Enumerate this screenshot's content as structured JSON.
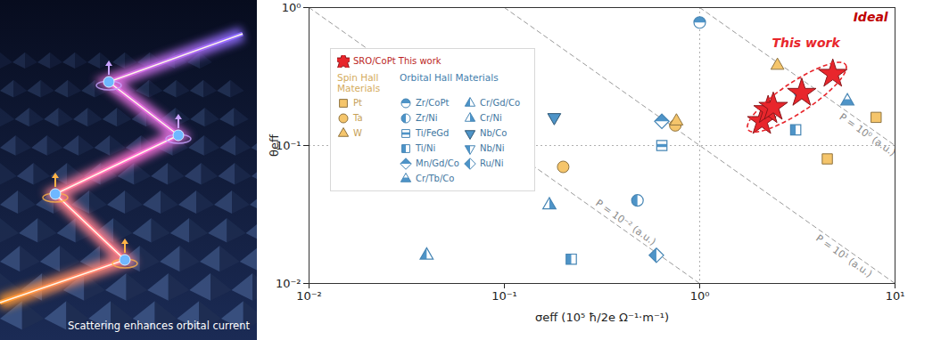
{
  "illustration": {
    "caption": "Scattering enhances orbital current"
  },
  "chart_data": {
    "type": "scatter",
    "x_label": "σeff (10⁵ ħ/2e Ω⁻¹·m⁻¹)",
    "y_label": "θeff",
    "log": true,
    "grid": false,
    "legend": "upper left",
    "xlim": [
      0.01,
      10
    ],
    "xticks": [
      {
        "value": 0.01,
        "label": "10⁻²"
      },
      {
        "value": 0.1,
        "label": "10⁻¹"
      },
      {
        "value": 1,
        "label": "10⁰"
      },
      {
        "value": 10,
        "label": "10¹"
      }
    ],
    "ylim": [
      0.01,
      1
    ],
    "yticks": [
      {
        "value": 0.01,
        "label": "10⁻²"
      },
      {
        "value": 0.1,
        "label": "10⁻¹"
      },
      {
        "value": 1,
        "label": "10⁰"
      }
    ],
    "dotted_lines": {
      "x": [
        1
      ],
      "y": [
        0.1
      ]
    },
    "reference_lines": [
      {
        "label": "P = 10⁻² (a.u.)",
        "x": [
          0.01,
          1
        ],
        "y": [
          1,
          0.01
        ]
      },
      {
        "label": "P = 10¹ (a.u.)",
        "x": [
          0.1,
          10
        ],
        "y": [
          1,
          0.01
        ]
      },
      {
        "label": "P = 10⁰ (a.u.)",
        "x": [
          1,
          10
        ],
        "y": [
          1,
          0.1
        ]
      }
    ],
    "annotations": [
      {
        "text": "This work",
        "x": 3.5,
        "y": 0.55,
        "color": "#e8262c"
      },
      {
        "text": "Ideal",
        "x": 7.5,
        "y": 0.85,
        "color": "#c00000"
      }
    ],
    "series": [
      {
        "name": "SRO/CoPt This work",
        "color": "#e8262c",
        "marker": "star",
        "x": [
          2.08,
          2.24,
          2.38,
          3.33,
          4.8
        ],
        "values": [
          0.15,
          0.18,
          0.19,
          0.24,
          0.33
        ]
      },
      {
        "name": "Pt",
        "group": "Spin Hall Materials",
        "color": "#f5c56b",
        "marker": "square",
        "x": [
          8.0,
          4.5
        ],
        "values": [
          0.16,
          0.08
        ]
      },
      {
        "name": "Ta",
        "group": "Spin Hall Materials",
        "color": "#f5c56b",
        "marker": "circle",
        "x": [
          0.2,
          0.75
        ],
        "values": [
          0.07,
          0.14
        ]
      },
      {
        "name": "W",
        "group": "Spin Hall Materials",
        "color": "#f5c56b",
        "marker": "triangle",
        "x": [
          2.5,
          0.76
        ],
        "values": [
          0.38,
          0.15
        ]
      },
      {
        "name": "Zr/CoPt",
        "group": "Orbital Hall Materials",
        "color": "#4e94c8",
        "marker": "circle-top",
        "x": [
          1.0
        ],
        "values": [
          0.78
        ]
      },
      {
        "name": "Zr/Ni",
        "group": "Orbital Hall Materials",
        "color": "#4e94c8",
        "marker": "circle-left",
        "x": [
          0.48
        ],
        "values": [
          0.04
        ]
      },
      {
        "name": "Ti/FeGd",
        "group": "Orbital Hall Materials",
        "color": "#4e94c8",
        "marker": "square-stripe",
        "x": [
          0.64
        ],
        "values": [
          0.1
        ]
      },
      {
        "name": "Ti/Ni",
        "group": "Orbital Hall Materials",
        "color": "#4e94c8",
        "marker": "square-left",
        "x": [
          3.1,
          0.22
        ],
        "values": [
          0.13,
          0.015
        ]
      },
      {
        "name": "Mn/Gd/Co",
        "group": "Orbital Hall Materials",
        "color": "#4e94c8",
        "marker": "diamond-top",
        "x": [
          0.64
        ],
        "values": [
          0.15
        ]
      },
      {
        "name": "Cr/Tb/Co",
        "group": "Orbital Hall Materials",
        "color": "#4e94c8",
        "marker": "triangle-bottom",
        "x": [
          5.7
        ],
        "values": [
          0.21
        ]
      },
      {
        "name": "Cr/Gd/Co",
        "group": "Orbital Hall Materials",
        "color": "#4e94c8",
        "marker": "triangle-left",
        "x": [
          0.04
        ],
        "values": [
          0.016
        ]
      },
      {
        "name": "Cr/Ni",
        "group": "Orbital Hall Materials",
        "color": "#4e94c8",
        "marker": "triangle-right",
        "x": [
          0.17
        ],
        "values": [
          0.037
        ]
      },
      {
        "name": "Nb/Co",
        "group": "Orbital Hall Materials",
        "color": "#4e94c8",
        "marker": "triangledown",
        "x": [
          0.18
        ],
        "values": [
          0.16
        ]
      },
      {
        "name": "Nb/Ni",
        "group": "Orbital Hall Materials",
        "color": "#4e94c8",
        "marker": "triangledown-left",
        "x": [
          3.2
        ],
        "values": [
          0.24
        ]
      },
      {
        "name": "Ru/Ni",
        "group": "Orbital Hall Materials",
        "color": "#4e94c8",
        "marker": "diamond-left",
        "x": [
          0.6
        ],
        "values": [
          0.016
        ]
      }
    ]
  }
}
